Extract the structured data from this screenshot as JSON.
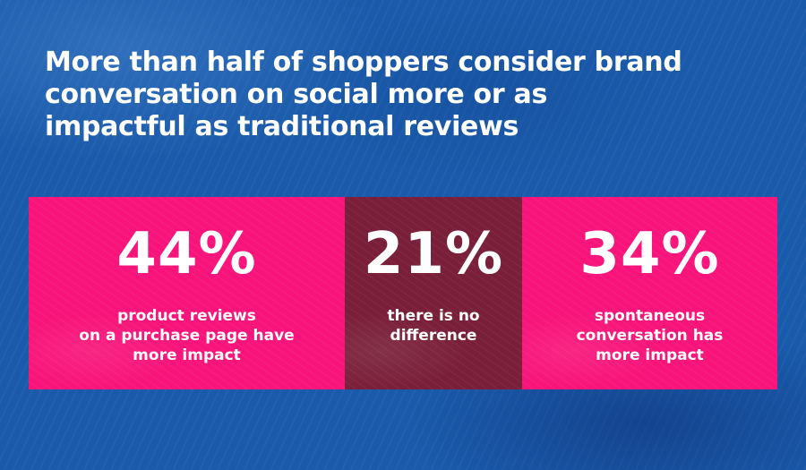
{
  "title": "More than half of shoppers consider brand conversation on social more or as impactful as traditional reviews",
  "colors": {
    "background": "#1a5aaa",
    "pink": "#f8147a",
    "maroon": "#7a1f3a",
    "text": "#ffffff"
  },
  "chart_data": {
    "type": "table",
    "title": "More than half of shoppers consider brand conversation on social more or as impactful as traditional reviews",
    "categories": [
      "product reviews on a purchase page have more impact",
      "there is no difference",
      "spontaneous conversation has more impact"
    ],
    "values": [
      44,
      21,
      34
    ],
    "stats": [
      {
        "value_label": "44%",
        "description": "product reviews\non a purchase page have\nmore impact",
        "color": "#f8147a"
      },
      {
        "value_label": "21%",
        "description": "there is no\ndifference",
        "color": "#7a1f3a"
      },
      {
        "value_label": "34%",
        "description": "spontaneous\nconversation has\nmore impact",
        "color": "#f8147a"
      }
    ]
  }
}
